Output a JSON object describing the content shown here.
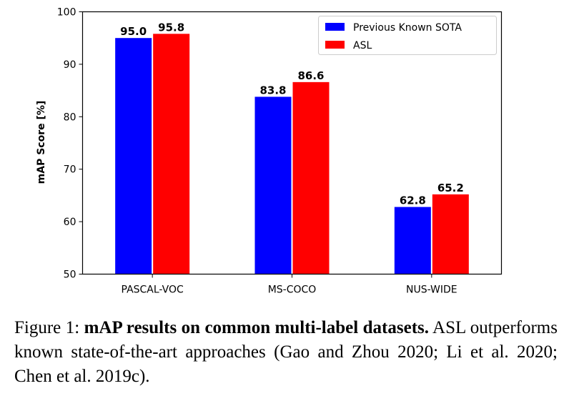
{
  "chart_data": {
    "type": "bar",
    "categories": [
      "PASCAL-VOC",
      "MS-COCO",
      "NUS-WIDE"
    ],
    "series": [
      {
        "name": "Previous Known SOTA",
        "color": "#0000ff",
        "values": [
          95.0,
          83.8,
          62.8
        ],
        "labels": [
          "95.0",
          "83.8",
          "62.8"
        ]
      },
      {
        "name": "ASL",
        "color": "#ff0000",
        "values": [
          95.8,
          86.6,
          65.2
        ],
        "labels": [
          "95.8",
          "86.6",
          "65.2"
        ]
      }
    ],
    "ylabel": "mAP Score [%]",
    "xlabel": "",
    "ylim": [
      50,
      100
    ],
    "yticks": [
      50,
      60,
      70,
      80,
      90,
      100
    ],
    "ytick_labels": [
      "50",
      "60",
      "70",
      "80",
      "90",
      "100"
    ],
    "legend_position": "top-right",
    "grid": false
  },
  "caption": {
    "prefix": "Figure 1: ",
    "bold": "mAP results on common multi-label datasets.",
    "text": " ASL outperforms known state-of-the-art approaches (Gao and Zhou 2020; Li et al. 2020; Chen et al. 2019c)."
  }
}
